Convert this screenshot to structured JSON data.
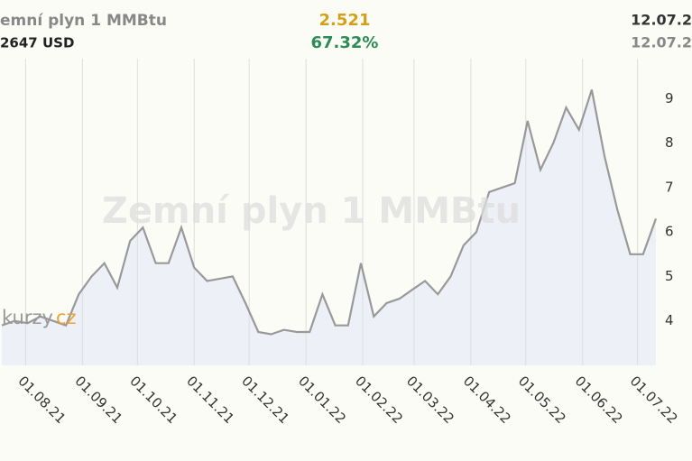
{
  "header": {
    "name": "emní plyn 1 MMBtu",
    "unit": "2647 USD",
    "price": "2.521",
    "change": "67.32%",
    "date1": "12.07.2",
    "date2": "12.07.2",
    "logo_a": "kurzy",
    "logo_b": "cz"
  },
  "chart_data": {
    "type": "area",
    "watermark": "Zemní plyn 1 MMBtu",
    "x": [
      "2021-07-19",
      "2021-07-26",
      "2021-08-02",
      "2021-08-09",
      "2021-08-16",
      "2021-08-23",
      "2021-08-30",
      "2021-09-06",
      "2021-09-13",
      "2021-09-20",
      "2021-09-27",
      "2021-10-04",
      "2021-10-11",
      "2021-10-18",
      "2021-10-25",
      "2021-11-01",
      "2021-11-08",
      "2021-11-15",
      "2021-11-22",
      "2021-11-29",
      "2021-12-06",
      "2021-12-13",
      "2021-12-20",
      "2021-12-27",
      "2022-01-03",
      "2022-01-10",
      "2022-01-17",
      "2022-01-24",
      "2022-01-31",
      "2022-02-07",
      "2022-02-14",
      "2022-02-21",
      "2022-02-28",
      "2022-03-07",
      "2022-03-14",
      "2022-03-21",
      "2022-03-28",
      "2022-04-04",
      "2022-04-11",
      "2022-04-18",
      "2022-04-25",
      "2022-05-02",
      "2022-05-09",
      "2022-05-16",
      "2022-05-23",
      "2022-05-30",
      "2022-06-06",
      "2022-06-13",
      "2022-06-20",
      "2022-06-27",
      "2022-07-04",
      "2022-07-11"
    ],
    "values": [
      3.9,
      4.0,
      3.95,
      4.1,
      4.0,
      3.9,
      4.6,
      5.0,
      5.3,
      4.75,
      5.8,
      6.1,
      5.3,
      5.3,
      6.1,
      5.2,
      4.9,
      4.95,
      5.0,
      4.4,
      3.75,
      3.7,
      3.8,
      3.75,
      3.75,
      4.6,
      3.9,
      3.9,
      5.3,
      4.1,
      4.4,
      4.5,
      4.7,
      4.9,
      4.6,
      5.0,
      5.7,
      6.0,
      6.9,
      7.0,
      7.1,
      8.5,
      7.4,
      8.0,
      8.8,
      8.3,
      9.2,
      7.7,
      6.5,
      5.5,
      5.5,
      6.3
    ],
    "color": "#999999",
    "fill": "#eef0f7",
    "xlim": [
      "2021-07-18",
      "2022-07-12"
    ],
    "xticks": [
      {
        "value": "2021-08-01",
        "label": "01.08.21"
      },
      {
        "value": "2021-09-01",
        "label": "01.09.21"
      },
      {
        "value": "2021-10-01",
        "label": "01.10.21"
      },
      {
        "value": "2021-11-01",
        "label": "01.11.21"
      },
      {
        "value": "2021-12-01",
        "label": "01.12.21"
      },
      {
        "value": "2022-01-01",
        "label": "01.01.22"
      },
      {
        "value": "2022-02-01",
        "label": "01.02.22"
      },
      {
        "value": "2022-03-01",
        "label": "01.03.22"
      },
      {
        "value": "2022-04-01",
        "label": "01.04.22"
      },
      {
        "value": "2022-05-01",
        "label": "01.05.22"
      },
      {
        "value": "2022-06-01",
        "label": "01.06.22"
      },
      {
        "value": "2022-07-01",
        "label": "01.07.22"
      }
    ],
    "ylim": [
      3,
      9.9
    ],
    "yticks": [
      4,
      5,
      6,
      7,
      8,
      9
    ],
    "grid": true
  }
}
